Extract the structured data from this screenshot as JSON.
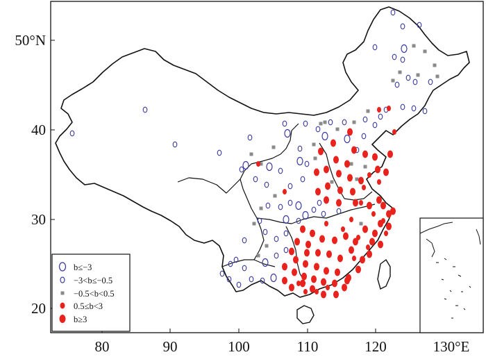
{
  "axes": {
    "x_ticks": [
      "80",
      "90",
      "100",
      "110",
      "120",
      "130°E"
    ],
    "y_ticks": [
      "20",
      "30",
      "40",
      "50°N"
    ]
  },
  "legend": {
    "items": [
      {
        "label": "b≤−3",
        "symbol": "large-open-circle",
        "color": "#3a3aa0"
      },
      {
        "label": "−3<b≤−0.5",
        "symbol": "small-open-circle",
        "color": "#3a3aa0"
      },
      {
        "label": "−0.5<b<0.5",
        "symbol": "gray-square",
        "color": "#8a8a8a"
      },
      {
        "label": "0.5≤b<3",
        "symbol": "small-red-dot",
        "color": "#e8231e"
      },
      {
        "label": "b≥3",
        "symbol": "large-red-dot",
        "color": "#e8231e"
      }
    ]
  },
  "colors": {
    "negative": "#3a3aa0",
    "neutral": "#8a8a8a",
    "positive": "#e8231e",
    "boundary": "#111111"
  }
}
